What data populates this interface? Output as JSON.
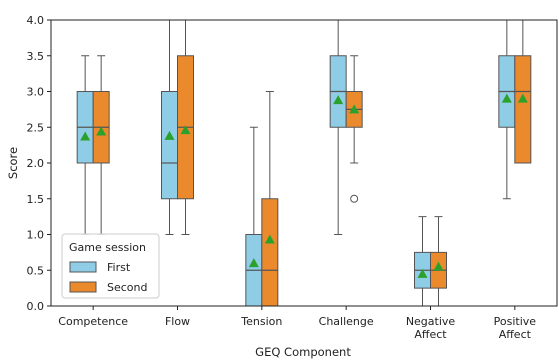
{
  "chart_data": {
    "type": "boxplot",
    "title": "",
    "xlabel": "GEQ Component",
    "ylabel": "Score",
    "ylim": [
      0,
      4.0
    ],
    "yticks": [
      "0.0",
      "0.5",
      "1.0",
      "1.5",
      "2.0",
      "2.5",
      "3.0",
      "3.5",
      "4.0"
    ],
    "categories": [
      [
        "Competence"
      ],
      [
        "Flow"
      ],
      [
        "Tension"
      ],
      [
        "Challenge"
      ],
      [
        "Negative",
        "Affect"
      ],
      [
        "Positive",
        "Affect"
      ]
    ],
    "legend": {
      "title": "Game session",
      "placement": "bottom-left"
    },
    "series": [
      {
        "name": "First",
        "color": "#8fcde6",
        "boxes": [
          {
            "whisker_low": 1.0,
            "q1": 2.0,
            "median": 2.5,
            "q3": 3.0,
            "whisker_high": 3.5,
            "mean": 2.37,
            "outliers": []
          },
          {
            "whisker_low": 1.0,
            "q1": 1.5,
            "median": 2.0,
            "q3": 3.0,
            "whisker_high": 4.0,
            "mean": 2.38,
            "outliers": []
          },
          {
            "whisker_low": 0.0,
            "q1": 0.0,
            "median": 0.5,
            "q3": 1.0,
            "whisker_high": 2.5,
            "mean": 0.6,
            "outliers": []
          },
          {
            "whisker_low": 1.0,
            "q1": 2.5,
            "median": 3.0,
            "q3": 3.5,
            "whisker_high": 4.0,
            "mean": 2.88,
            "outliers": []
          },
          {
            "whisker_low": 0.0,
            "q1": 0.25,
            "median": 0.5,
            "q3": 0.75,
            "whisker_high": 1.25,
            "mean": 0.45,
            "outliers": []
          },
          {
            "whisker_low": 1.5,
            "q1": 2.5,
            "median": 3.0,
            "q3": 3.5,
            "whisker_high": 4.0,
            "mean": 2.9,
            "outliers": []
          }
        ]
      },
      {
        "name": "Second",
        "color": "#ea8a2c",
        "boxes": [
          {
            "whisker_low": 1.0,
            "q1": 2.0,
            "median": 2.5,
            "q3": 3.0,
            "whisker_high": 3.5,
            "mean": 2.44,
            "outliers": []
          },
          {
            "whisker_low": 1.0,
            "q1": 1.5,
            "median": 2.5,
            "q3": 3.5,
            "whisker_high": 4.0,
            "mean": 2.46,
            "outliers": []
          },
          {
            "whisker_low": 0.0,
            "q1": 0.0,
            "median": 0.5,
            "q3": 1.5,
            "whisker_high": 3.0,
            "mean": 0.93,
            "outliers": []
          },
          {
            "whisker_low": 2.0,
            "q1": 2.5,
            "median": 2.75,
            "q3": 3.0,
            "whisker_high": 3.5,
            "mean": 2.75,
            "outliers": [
              1.5
            ]
          },
          {
            "whisker_low": 0.0,
            "q1": 0.25,
            "median": 0.5,
            "q3": 0.75,
            "whisker_high": 1.25,
            "mean": 0.55,
            "outliers": []
          },
          {
            "whisker_low": 2.0,
            "q1": 2.0,
            "median": 3.0,
            "q3": 3.5,
            "whisker_high": 4.0,
            "mean": 2.9,
            "outliers": []
          }
        ]
      }
    ],
    "mean_marker_color": "#2ca02c",
    "grid": false
  }
}
